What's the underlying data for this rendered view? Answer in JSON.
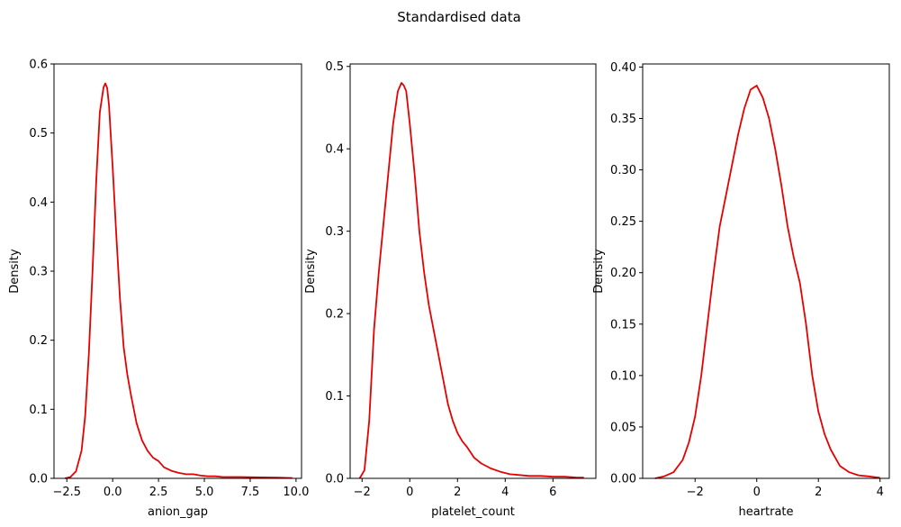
{
  "suptitle": "Standardised data",
  "line_color": "#e60000",
  "chart_data": [
    {
      "type": "line",
      "xlabel": "anion_gap",
      "ylabel": "Density",
      "xlim": [
        -3.2,
        10.3
      ],
      "ylim": [
        0,
        0.6
      ],
      "xticks": [
        -2.5,
        0,
        2.5,
        5,
        7.5,
        10
      ],
      "xtick_labels": [
        "−2.5",
        "0.0",
        "2.5",
        "5.0",
        "7.5",
        "10.0"
      ],
      "yticks": [
        0,
        0.1,
        0.2,
        0.3,
        0.4,
        0.5,
        0.6
      ],
      "ytick_labels": [
        "0.0",
        "0.1",
        "0.2",
        "0.3",
        "0.4",
        "0.5",
        "0.6"
      ],
      "series": [
        {
          "x": [
            -2.6,
            -2.3,
            -2.0,
            -1.7,
            -1.5,
            -1.3,
            -1.1,
            -0.9,
            -0.7,
            -0.5,
            -0.4,
            -0.3,
            -0.2,
            0.0,
            0.2,
            0.4,
            0.6,
            0.8,
            1.0,
            1.3,
            1.6,
            1.9,
            2.2,
            2.5,
            2.8,
            3.2,
            3.6,
            4.0,
            4.4,
            4.8,
            5.2,
            5.6,
            6.0,
            7.0,
            8.0,
            9.0,
            9.8
          ],
          "y": [
            0.0,
            0.002,
            0.01,
            0.04,
            0.09,
            0.18,
            0.3,
            0.43,
            0.53,
            0.566,
            0.572,
            0.565,
            0.54,
            0.45,
            0.35,
            0.26,
            0.19,
            0.15,
            0.12,
            0.08,
            0.055,
            0.04,
            0.03,
            0.025,
            0.016,
            0.011,
            0.008,
            0.006,
            0.006,
            0.004,
            0.003,
            0.003,
            0.002,
            0.002,
            0.0015,
            0.001,
            0.0005
          ]
        }
      ]
    },
    {
      "type": "line",
      "xlabel": "platelet_count",
      "ylabel": "Density",
      "xlim": [
        -2.5,
        7.8
      ],
      "ylim": [
        0,
        0.503
      ],
      "xticks": [
        -2,
        0,
        2,
        4,
        6
      ],
      "xtick_labels": [
        "−2",
        "0",
        "2",
        "4",
        "6"
      ],
      "yticks": [
        0,
        0.1,
        0.2,
        0.3,
        0.4,
        0.5
      ],
      "ytick_labels": [
        "0.0",
        "0.1",
        "0.2",
        "0.3",
        "0.4",
        "0.5"
      ],
      "series": [
        {
          "x": [
            -2.1,
            -1.9,
            -1.7,
            -1.5,
            -1.3,
            -1.1,
            -0.9,
            -0.7,
            -0.5,
            -0.35,
            -0.25,
            -0.15,
            0.0,
            0.2,
            0.4,
            0.6,
            0.8,
            1.0,
            1.2,
            1.4,
            1.6,
            1.8,
            2.0,
            2.2,
            2.4,
            2.7,
            3.0,
            3.4,
            3.8,
            4.2,
            4.6,
            5.0,
            5.5,
            6.0,
            6.5,
            7.0,
            7.3
          ],
          "y": [
            0.0,
            0.01,
            0.07,
            0.18,
            0.25,
            0.31,
            0.37,
            0.43,
            0.47,
            0.48,
            0.477,
            0.47,
            0.43,
            0.37,
            0.3,
            0.25,
            0.21,
            0.18,
            0.15,
            0.12,
            0.09,
            0.07,
            0.055,
            0.045,
            0.038,
            0.025,
            0.018,
            0.012,
            0.008,
            0.005,
            0.004,
            0.003,
            0.003,
            0.002,
            0.002,
            0.001,
            0.001
          ]
        }
      ]
    },
    {
      "type": "line",
      "xlabel": "heartrate",
      "ylabel": "Density",
      "xlim": [
        -3.7,
        4.3
      ],
      "ylim": [
        0,
        0.403
      ],
      "xticks": [
        -2,
        0,
        2,
        4
      ],
      "xtick_labels": [
        "−2",
        "0",
        "2",
        "4"
      ],
      "yticks": [
        0,
        0.05,
        0.1,
        0.15,
        0.2,
        0.25,
        0.3,
        0.35,
        0.4
      ],
      "ytick_labels": [
        "0.00",
        "0.05",
        "0.10",
        "0.15",
        "0.20",
        "0.25",
        "0.30",
        "0.35",
        "0.40"
      ],
      "series": [
        {
          "x": [
            -3.3,
            -3.0,
            -2.7,
            -2.4,
            -2.2,
            -2.0,
            -1.8,
            -1.6,
            -1.4,
            -1.2,
            -1.0,
            -0.8,
            -0.6,
            -0.4,
            -0.2,
            0.0,
            0.2,
            0.4,
            0.6,
            0.8,
            1.0,
            1.2,
            1.4,
            1.6,
            1.8,
            2.0,
            2.2,
            2.4,
            2.7,
            3.0,
            3.3,
            3.6,
            4.0
          ],
          "y": [
            0.0,
            0.002,
            0.006,
            0.018,
            0.035,
            0.06,
            0.1,
            0.15,
            0.2,
            0.245,
            0.275,
            0.305,
            0.335,
            0.36,
            0.378,
            0.382,
            0.37,
            0.35,
            0.32,
            0.285,
            0.245,
            0.215,
            0.19,
            0.15,
            0.1,
            0.065,
            0.043,
            0.028,
            0.012,
            0.006,
            0.003,
            0.002,
            0.0005
          ]
        }
      ]
    }
  ]
}
